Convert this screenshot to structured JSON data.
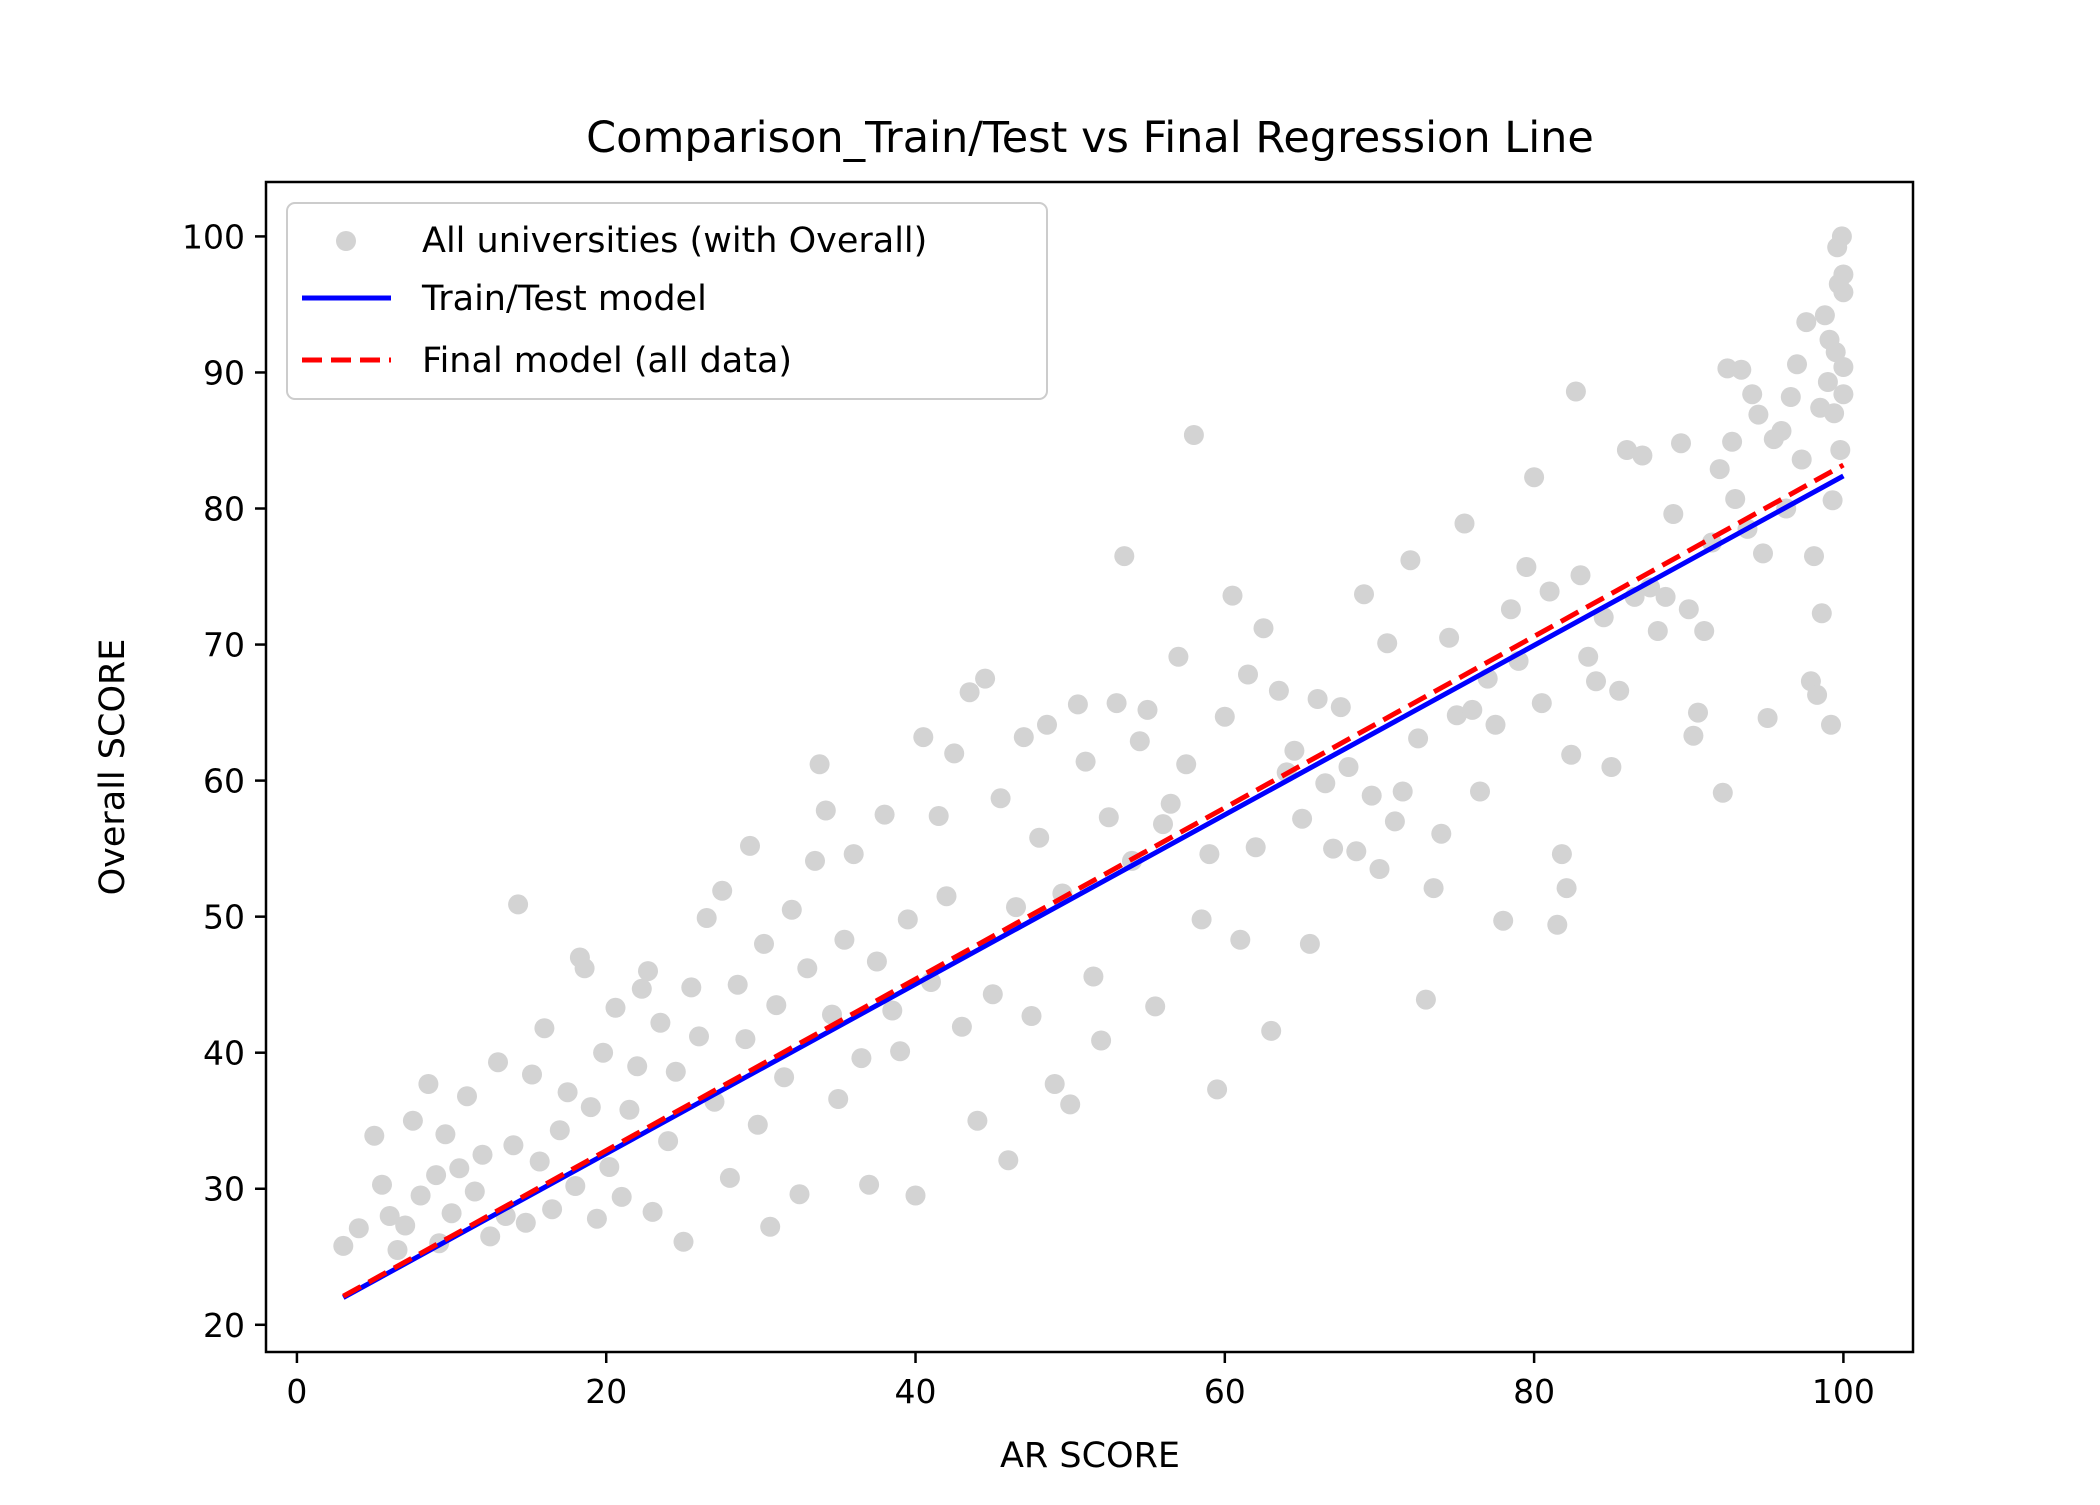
{
  "chart_data": {
    "type": "scatter",
    "title": "Comparison_Train/Test vs Final Regression Line",
    "xlabel": "AR SCORE",
    "ylabel": "Overall SCORE",
    "xlim": [
      -2,
      104.5
    ],
    "ylim": [
      18,
      104
    ],
    "xticks": [
      0,
      20,
      40,
      60,
      80,
      100
    ],
    "yticks": [
      20,
      30,
      40,
      50,
      60,
      70,
      80,
      90,
      100
    ],
    "grid": false,
    "legend_position": "top-left",
    "series": [
      {
        "name": "All universities (with Overall)",
        "kind": "scatter",
        "color": "#d3d3d3",
        "points": [
          [
            3.0,
            25.8
          ],
          [
            4.0,
            27.1
          ],
          [
            5.0,
            33.9
          ],
          [
            5.5,
            30.3
          ],
          [
            6.0,
            28.0
          ],
          [
            6.5,
            25.5
          ],
          [
            7.0,
            27.3
          ],
          [
            7.5,
            35.0
          ],
          [
            8.0,
            29.5
          ],
          [
            8.5,
            37.7
          ],
          [
            9.0,
            31.0
          ],
          [
            9.2,
            26.0
          ],
          [
            9.6,
            34.0
          ],
          [
            10.0,
            28.2
          ],
          [
            10.5,
            31.5
          ],
          [
            11.0,
            36.8
          ],
          [
            11.5,
            29.8
          ],
          [
            12.0,
            32.5
          ],
          [
            12.5,
            26.5
          ],
          [
            13.0,
            39.3
          ],
          [
            13.5,
            28.0
          ],
          [
            14.0,
            33.2
          ],
          [
            14.3,
            50.9
          ],
          [
            14.8,
            27.5
          ],
          [
            15.2,
            38.4
          ],
          [
            15.7,
            32.0
          ],
          [
            16.0,
            41.8
          ],
          [
            16.5,
            28.5
          ],
          [
            17.0,
            34.3
          ],
          [
            17.5,
            37.1
          ],
          [
            18.0,
            30.2
          ],
          [
            18.3,
            47.0
          ],
          [
            18.6,
            46.2
          ],
          [
            19.0,
            36.0
          ],
          [
            19.4,
            27.8
          ],
          [
            19.8,
            40.0
          ],
          [
            20.2,
            31.6
          ],
          [
            20.6,
            43.3
          ],
          [
            21.0,
            29.4
          ],
          [
            21.5,
            35.8
          ],
          [
            22.0,
            39.0
          ],
          [
            22.3,
            44.7
          ],
          [
            22.7,
            46.0
          ],
          [
            23.0,
            28.3
          ],
          [
            23.5,
            42.2
          ],
          [
            24.0,
            33.5
          ],
          [
            24.5,
            38.6
          ],
          [
            25.0,
            26.1
          ],
          [
            25.5,
            44.8
          ],
          [
            26.0,
            41.2
          ],
          [
            26.5,
            49.9
          ],
          [
            27.0,
            36.4
          ],
          [
            27.5,
            51.9
          ],
          [
            28.0,
            30.8
          ],
          [
            28.5,
            45.0
          ],
          [
            29.0,
            41.0
          ],
          [
            29.3,
            55.2
          ],
          [
            29.8,
            34.7
          ],
          [
            30.2,
            48.0
          ],
          [
            30.6,
            27.2
          ],
          [
            31.0,
            43.5
          ],
          [
            31.5,
            38.2
          ],
          [
            32.0,
            50.5
          ],
          [
            32.5,
            29.6
          ],
          [
            33.0,
            46.2
          ],
          [
            33.5,
            54.1
          ],
          [
            33.8,
            61.2
          ],
          [
            34.2,
            57.8
          ],
          [
            34.6,
            42.8
          ],
          [
            35.0,
            36.6
          ],
          [
            35.4,
            48.3
          ],
          [
            36.0,
            54.6
          ],
          [
            36.5,
            39.6
          ],
          [
            37.0,
            30.3
          ],
          [
            37.5,
            46.7
          ],
          [
            38.0,
            57.5
          ],
          [
            38.5,
            43.1
          ],
          [
            39.0,
            40.1
          ],
          [
            39.5,
            49.8
          ],
          [
            40.0,
            29.5
          ],
          [
            40.5,
            63.2
          ],
          [
            41.0,
            45.2
          ],
          [
            41.5,
            57.4
          ],
          [
            42.0,
            51.5
          ],
          [
            42.5,
            62.0
          ],
          [
            43.0,
            41.9
          ],
          [
            43.5,
            66.5
          ],
          [
            44.0,
            35.0
          ],
          [
            44.5,
            67.5
          ],
          [
            45.0,
            44.3
          ],
          [
            45.5,
            58.7
          ],
          [
            46.0,
            32.1
          ],
          [
            46.5,
            50.7
          ],
          [
            47.0,
            63.2
          ],
          [
            47.5,
            42.7
          ],
          [
            48.0,
            55.8
          ],
          [
            48.5,
            64.1
          ],
          [
            49.0,
            37.7
          ],
          [
            49.5,
            51.7
          ],
          [
            50.0,
            36.2
          ],
          [
            50.5,
            65.6
          ],
          [
            51.0,
            61.4
          ],
          [
            51.5,
            45.6
          ],
          [
            52.0,
            40.9
          ],
          [
            52.5,
            57.3
          ],
          [
            53.0,
            65.7
          ],
          [
            53.5,
            76.5
          ],
          [
            54.0,
            54.1
          ],
          [
            54.5,
            62.9
          ],
          [
            55.0,
            65.2
          ],
          [
            55.5,
            43.4
          ],
          [
            56.0,
            56.8
          ],
          [
            56.5,
            58.3
          ],
          [
            57.0,
            69.1
          ],
          [
            57.5,
            61.2
          ],
          [
            58.0,
            85.4
          ],
          [
            58.5,
            49.8
          ],
          [
            59.0,
            54.6
          ],
          [
            59.5,
            37.3
          ],
          [
            60.0,
            64.7
          ],
          [
            60.5,
            73.6
          ],
          [
            61.0,
            48.3
          ],
          [
            61.5,
            67.8
          ],
          [
            62.0,
            55.1
          ],
          [
            62.5,
            71.2
          ],
          [
            63.0,
            41.6
          ],
          [
            63.5,
            66.6
          ],
          [
            64.0,
            60.6
          ],
          [
            64.5,
            62.2
          ],
          [
            65.0,
            57.2
          ],
          [
            65.5,
            48.0
          ],
          [
            66.0,
            66.0
          ],
          [
            66.5,
            59.8
          ],
          [
            67.0,
            55.0
          ],
          [
            67.5,
            65.4
          ],
          [
            68.0,
            61.0
          ],
          [
            68.5,
            54.8
          ],
          [
            69.0,
            73.7
          ],
          [
            69.5,
            58.9
          ],
          [
            70.0,
            53.5
          ],
          [
            70.5,
            70.1
          ],
          [
            71.0,
            57.0
          ],
          [
            71.5,
            59.2
          ],
          [
            72.0,
            76.2
          ],
          [
            72.5,
            63.1
          ],
          [
            73.0,
            43.9
          ],
          [
            73.5,
            52.1
          ],
          [
            74.0,
            56.1
          ],
          [
            74.5,
            70.5
          ],
          [
            75.0,
            64.8
          ],
          [
            75.5,
            78.9
          ],
          [
            76.0,
            65.2
          ],
          [
            76.5,
            59.2
          ],
          [
            77.0,
            67.5
          ],
          [
            77.5,
            64.1
          ],
          [
            78.0,
            49.7
          ],
          [
            78.5,
            72.6
          ],
          [
            79.0,
            68.8
          ],
          [
            79.5,
            75.7
          ],
          [
            80.0,
            82.3
          ],
          [
            80.5,
            65.7
          ],
          [
            81.0,
            73.9
          ],
          [
            81.5,
            49.4
          ],
          [
            81.8,
            54.6
          ],
          [
            82.1,
            52.1
          ],
          [
            82.4,
            61.9
          ],
          [
            82.7,
            88.6
          ],
          [
            83.0,
            75.1
          ],
          [
            83.5,
            69.1
          ],
          [
            84.0,
            67.3
          ],
          [
            84.5,
            72.0
          ],
          [
            85.0,
            61.0
          ],
          [
            85.5,
            66.6
          ],
          [
            86.0,
            84.3
          ],
          [
            86.5,
            73.5
          ],
          [
            87.0,
            83.9
          ],
          [
            87.5,
            74.2
          ],
          [
            88.0,
            71.0
          ],
          [
            88.5,
            73.5
          ],
          [
            89.0,
            79.6
          ],
          [
            89.5,
            84.8
          ],
          [
            90.0,
            72.6
          ],
          [
            90.3,
            63.3
          ],
          [
            90.6,
            65.0
          ],
          [
            91.0,
            71.0
          ],
          [
            91.5,
            77.5
          ],
          [
            92.0,
            82.9
          ],
          [
            92.2,
            59.1
          ],
          [
            92.5,
            90.3
          ],
          [
            92.8,
            84.9
          ],
          [
            93.0,
            80.7
          ],
          [
            93.4,
            90.2
          ],
          [
            93.8,
            78.5
          ],
          [
            94.1,
            88.4
          ],
          [
            94.5,
            86.9
          ],
          [
            94.8,
            76.7
          ],
          [
            95.1,
            64.6
          ],
          [
            95.5,
            85.1
          ],
          [
            96.0,
            85.7
          ],
          [
            96.3,
            80.0
          ],
          [
            96.6,
            88.2
          ],
          [
            97.0,
            90.6
          ],
          [
            97.3,
            83.6
          ],
          [
            97.6,
            93.7
          ],
          [
            97.9,
            67.3
          ],
          [
            98.1,
            76.5
          ],
          [
            98.3,
            66.3
          ],
          [
            98.5,
            87.4
          ],
          [
            98.6,
            72.3
          ],
          [
            98.8,
            94.2
          ],
          [
            99.0,
            89.3
          ],
          [
            99.1,
            92.4
          ],
          [
            99.2,
            64.1
          ],
          [
            99.3,
            80.6
          ],
          [
            99.4,
            87.0
          ],
          [
            99.5,
            91.5
          ],
          [
            99.6,
            99.2
          ],
          [
            99.7,
            96.5
          ],
          [
            99.8,
            84.3
          ],
          [
            99.9,
            100.0
          ],
          [
            100.0,
            88.4
          ],
          [
            100.0,
            90.4
          ],
          [
            100.0,
            95.9
          ],
          [
            100.0,
            97.2
          ]
        ]
      },
      {
        "name": "Train/Test model",
        "kind": "line",
        "color": "#0000ff",
        "linestyle": "solid",
        "x": [
          3.0,
          100.0
        ],
        "y": [
          22.0,
          82.4
        ]
      },
      {
        "name": "Final model (all data)",
        "kind": "line",
        "color": "#ff0000",
        "linestyle": "dashed",
        "x": [
          3.0,
          100.0
        ],
        "y": [
          22.1,
          83.2
        ]
      }
    ]
  }
}
